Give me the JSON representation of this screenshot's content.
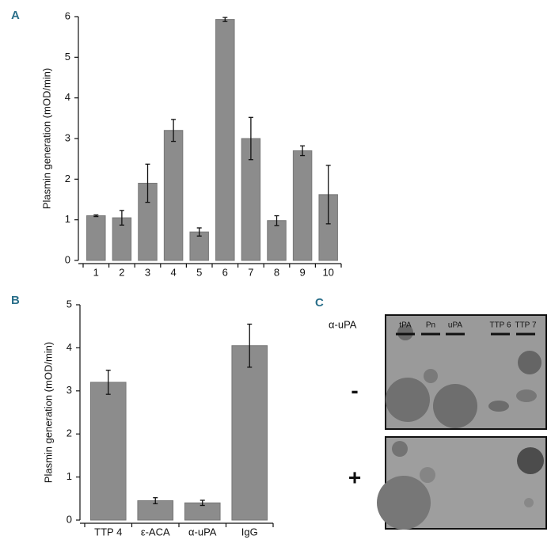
{
  "chart_data": [
    {
      "type": "bar",
      "panel": "A",
      "ylabel": "Plasmin generation (mOD/min)",
      "categories": [
        "1",
        "2",
        "3",
        "4",
        "5",
        "6",
        "7",
        "8",
        "9",
        "10"
      ],
      "values": [
        1.1,
        1.05,
        1.9,
        3.2,
        0.7,
        5.93,
        3.0,
        0.98,
        2.7,
        1.62
      ],
      "errors": [
        0.02,
        0.18,
        0.47,
        0.27,
        0.1,
        0.05,
        0.52,
        0.12,
        0.12,
        0.72
      ],
      "color": "#8c8c8c",
      "ylim": [
        0,
        6
      ],
      "yticks": [
        0,
        1,
        2,
        3,
        4,
        5,
        6
      ]
    },
    {
      "type": "bar",
      "panel": "B",
      "ylabel": "Plasmin generation (mOD/min)",
      "categories": [
        "TTP 4",
        "ε-ACA",
        "α-uPA",
        "IgG"
      ],
      "values": [
        3.2,
        0.45,
        0.4,
        4.05
      ],
      "errors": [
        0.28,
        0.07,
        0.06,
        0.5
      ],
      "color": "#8c8c8c",
      "ylim": [
        0,
        5
      ],
      "yticks": [
        0,
        1,
        2,
        3,
        4,
        5
      ]
    }
  ],
  "panel_c": {
    "label": "C",
    "row_label": "α-uPA",
    "lanes": [
      "tPA",
      "Pn",
      "uPA",
      "TTP 6",
      "TTP 7"
    ],
    "conditions": [
      "-",
      "+"
    ]
  }
}
